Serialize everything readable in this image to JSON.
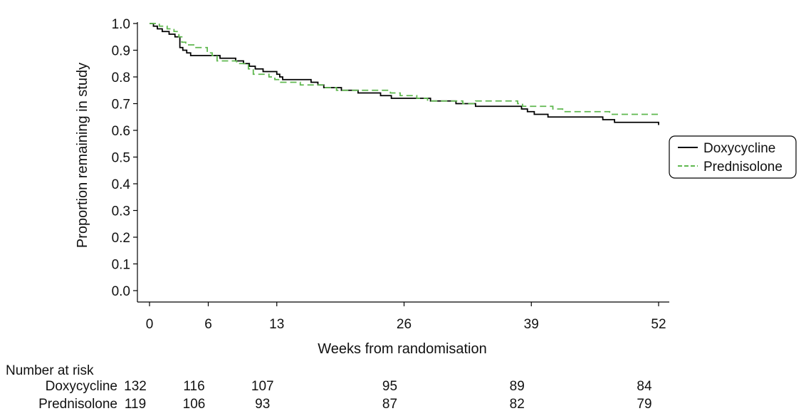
{
  "chart_data": {
    "type": "line",
    "title": "",
    "xlabel": "Weeks from randomisation",
    "ylabel": "Proportion remaining in study",
    "xlim": [
      0,
      52
    ],
    "ylim": [
      0,
      1.0
    ],
    "x_ticks": [
      0,
      6,
      13,
      26,
      39,
      52
    ],
    "y_ticks": [
      "0.0",
      "0.1",
      "0.2",
      "0.3",
      "0.4",
      "0.5",
      "0.6",
      "0.7",
      "0.8",
      "0.9",
      "1.0"
    ],
    "grid": false,
    "legend_position": "right",
    "series": [
      {
        "name": "Doxycycline",
        "color": "#000000",
        "style": "solid",
        "step_points": [
          [
            0,
            1.0
          ],
          [
            0.4,
            0.99
          ],
          [
            0.8,
            0.98
          ],
          [
            1.3,
            0.97
          ],
          [
            2.0,
            0.96
          ],
          [
            2.6,
            0.95
          ],
          [
            3.1,
            0.91
          ],
          [
            3.4,
            0.9
          ],
          [
            3.8,
            0.89
          ],
          [
            4.2,
            0.88
          ],
          [
            7.2,
            0.87
          ],
          [
            8.8,
            0.86
          ],
          [
            9.6,
            0.85
          ],
          [
            10.2,
            0.84
          ],
          [
            10.8,
            0.83
          ],
          [
            11.6,
            0.82
          ],
          [
            13.0,
            0.81
          ],
          [
            13.3,
            0.8
          ],
          [
            13.6,
            0.79
          ],
          [
            16.5,
            0.78
          ],
          [
            17.2,
            0.77
          ],
          [
            17.8,
            0.76
          ],
          [
            19.6,
            0.75
          ],
          [
            21.3,
            0.74
          ],
          [
            23.6,
            0.73
          ],
          [
            24.7,
            0.72
          ],
          [
            28.7,
            0.71
          ],
          [
            31.3,
            0.7
          ],
          [
            33.3,
            0.69
          ],
          [
            38.0,
            0.68
          ],
          [
            38.6,
            0.67
          ],
          [
            39.3,
            0.66
          ],
          [
            40.7,
            0.65
          ],
          [
            46.3,
            0.64
          ],
          [
            47.5,
            0.63
          ],
          [
            52.0,
            0.62
          ]
        ]
      },
      {
        "name": "Prednisolone",
        "color": "#5fb84f",
        "style": "dashed",
        "step_points": [
          [
            0,
            1.0
          ],
          [
            1.0,
            0.99
          ],
          [
            1.8,
            0.98
          ],
          [
            2.5,
            0.97
          ],
          [
            3.0,
            0.95
          ],
          [
            3.3,
            0.93
          ],
          [
            3.7,
            0.92
          ],
          [
            4.6,
            0.91
          ],
          [
            5.9,
            0.89
          ],
          [
            6.4,
            0.88
          ],
          [
            6.9,
            0.86
          ],
          [
            8.9,
            0.85
          ],
          [
            10.1,
            0.83
          ],
          [
            10.6,
            0.81
          ],
          [
            12.2,
            0.8
          ],
          [
            12.8,
            0.79
          ],
          [
            13.4,
            0.78
          ],
          [
            15.4,
            0.77
          ],
          [
            17.8,
            0.76
          ],
          [
            19.1,
            0.75
          ],
          [
            24.6,
            0.74
          ],
          [
            25.6,
            0.73
          ],
          [
            27.3,
            0.72
          ],
          [
            28.4,
            0.71
          ],
          [
            32.0,
            0.7
          ],
          [
            33.3,
            0.71
          ],
          [
            37.6,
            0.7
          ],
          [
            38.1,
            0.69
          ],
          [
            41.2,
            0.68
          ],
          [
            42.2,
            0.67
          ],
          [
            47.0,
            0.66
          ],
          [
            52.0,
            0.66
          ]
        ]
      }
    ]
  },
  "risk_table": {
    "title": "Number at risk",
    "weeks": [
      0,
      6,
      13,
      26,
      39,
      52
    ],
    "rows": [
      {
        "name": "Doxycycline",
        "values": [
          "132",
          "116",
          "107",
          "95",
          "89",
          "84"
        ]
      },
      {
        "name": "Prednisolone",
        "values": [
          "119",
          "106",
          "93",
          "87",
          "82",
          "79"
        ]
      }
    ]
  }
}
